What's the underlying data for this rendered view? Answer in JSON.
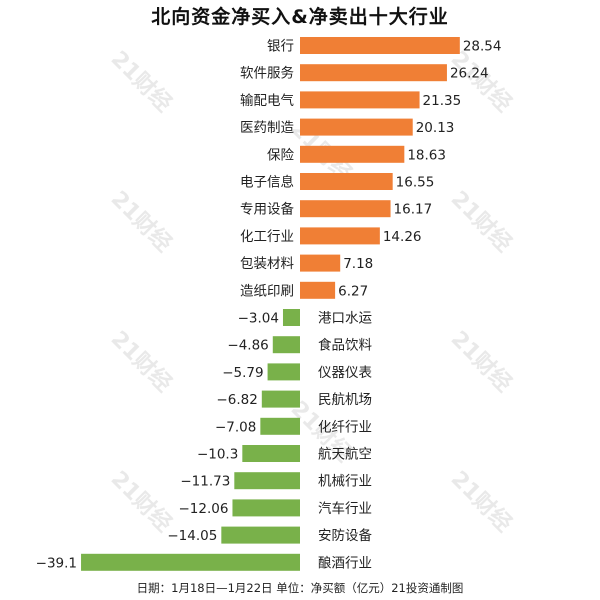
{
  "title": "北向资金净买入&净卖出十大行业",
  "footer": "日期：1月18日—1月22日 单位：净买额（亿元）21投资通制图",
  "watermark": "21财经",
  "colors": {
    "positive": "#f07f35",
    "negative": "#79b14a"
  },
  "chart_data": {
    "type": "bar",
    "orientation": "horizontal",
    "title": "北向资金净买入&净卖出十大行业",
    "unit": "净买额（亿元）",
    "categories": [
      "银行",
      "软件服务",
      "输配电气",
      "医药制造",
      "保险",
      "电子信息",
      "专用设备",
      "化工行业",
      "包装材料",
      "造纸印刷",
      "港口水运",
      "食品饮料",
      "仪器仪表",
      "民航机场",
      "化纤行业",
      "航天航空",
      "机械行业",
      "汽车行业",
      "安防设备",
      "酿酒行业"
    ],
    "values": [
      28.54,
      26.24,
      21.35,
      20.13,
      18.63,
      16.55,
      16.17,
      14.26,
      7.18,
      6.27,
      -3.04,
      -4.86,
      -5.79,
      -6.82,
      -7.08,
      -10.3,
      -11.73,
      -12.06,
      -14.05,
      -39.1
    ],
    "value_labels": [
      "28.54",
      "26.24",
      "21.35",
      "20.13",
      "18.63",
      "16.55",
      "16.17",
      "14.26",
      "7.18",
      "6.27",
      "−3.04",
      "−4.86",
      "−5.79",
      "−6.82",
      "−7.08",
      "−10.3",
      "−11.73",
      "−12.06",
      "−14.05",
      "−39.1"
    ]
  }
}
